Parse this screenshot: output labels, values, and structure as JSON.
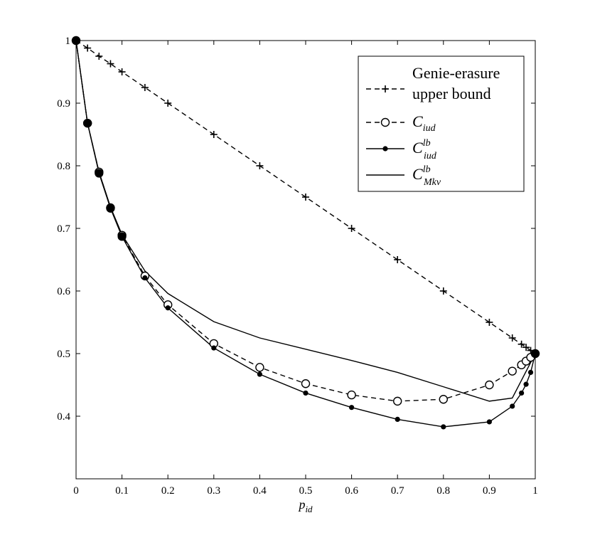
{
  "chart_data": {
    "type": "line",
    "xlabel": "p_id",
    "xlabel_main": "p",
    "xlabel_sub": "id",
    "xlim": [
      0,
      1
    ],
    "ylim": [
      0.3,
      1.0
    ],
    "x_ticks": [
      0,
      0.1,
      0.2,
      0.3,
      0.4,
      0.5,
      0.6,
      0.7,
      0.8,
      0.9,
      1
    ],
    "x_tick_labels": [
      "0",
      "0.1",
      "0.2",
      "0.3",
      "0.4",
      "0.5",
      "0.6",
      "0.7",
      "0.8",
      "0.9",
      "1"
    ],
    "y_ticks": [
      0.4,
      0.5,
      0.6,
      0.7,
      0.8,
      0.9,
      1
    ],
    "y_tick_labels": [
      "0.4",
      "0.5",
      "0.6",
      "0.7",
      "0.8",
      "0.9",
      "1"
    ],
    "legend_position": "top-right",
    "grid": false,
    "series": [
      {
        "name": "Genie-erasure upper bound",
        "name_line1": "Genie-erasure",
        "name_line2": "upper bound",
        "style": "dashed",
        "marker": "plus",
        "x": [
          0,
          0.025,
          0.05,
          0.075,
          0.1,
          0.15,
          0.2,
          0.3,
          0.4,
          0.5,
          0.6,
          0.7,
          0.8,
          0.9,
          0.95,
          0.97,
          0.98,
          0.99,
          1
        ],
        "y": [
          1,
          0.988,
          0.975,
          0.963,
          0.95,
          0.925,
          0.9,
          0.85,
          0.8,
          0.75,
          0.7,
          0.65,
          0.6,
          0.55,
          0.525,
          0.515,
          0.51,
          0.505,
          0.5
        ]
      },
      {
        "name": "C_iud",
        "name_main": "C",
        "name_sub": "iud",
        "name_sup": "",
        "style": "dashed",
        "marker": "open-circle",
        "x": [
          0,
          0.025,
          0.05,
          0.075,
          0.1,
          0.15,
          0.2,
          0.3,
          0.4,
          0.5,
          0.6,
          0.7,
          0.8,
          0.9,
          0.95,
          0.97,
          0.98,
          0.99,
          1
        ],
        "y": [
          1,
          0.868,
          0.79,
          0.733,
          0.689,
          0.624,
          0.578,
          0.516,
          0.478,
          0.452,
          0.434,
          0.424,
          0.427,
          0.45,
          0.472,
          0.482,
          0.488,
          0.494,
          0.5
        ]
      },
      {
        "name": "C_iud^lb",
        "name_main": "C",
        "name_sub": "iud",
        "name_sup": "lb",
        "style": "solid",
        "marker": "filled-circle",
        "x": [
          0,
          0.025,
          0.05,
          0.075,
          0.1,
          0.15,
          0.2,
          0.3,
          0.4,
          0.5,
          0.6,
          0.7,
          0.8,
          0.9,
          0.95,
          0.97,
          0.98,
          0.99,
          1
        ],
        "y": [
          1,
          0.868,
          0.788,
          0.732,
          0.687,
          0.621,
          0.573,
          0.509,
          0.467,
          0.437,
          0.414,
          0.395,
          0.383,
          0.391,
          0.416,
          0.437,
          0.451,
          0.47,
          0.5
        ]
      },
      {
        "name": "C_Mkv^lb",
        "name_main": "C",
        "name_sub": "Mkv",
        "name_sup": "lb",
        "style": "solid",
        "marker": "none",
        "x": [
          0,
          0.025,
          0.05,
          0.075,
          0.1,
          0.15,
          0.2,
          0.3,
          0.4,
          0.5,
          0.6,
          0.7,
          0.8,
          0.9,
          0.95,
          1
        ],
        "y": [
          1,
          0.868,
          0.79,
          0.734,
          0.69,
          0.632,
          0.596,
          0.551,
          0.525,
          0.507,
          0.489,
          0.47,
          0.447,
          0.424,
          0.429,
          0.5
        ]
      }
    ]
  }
}
